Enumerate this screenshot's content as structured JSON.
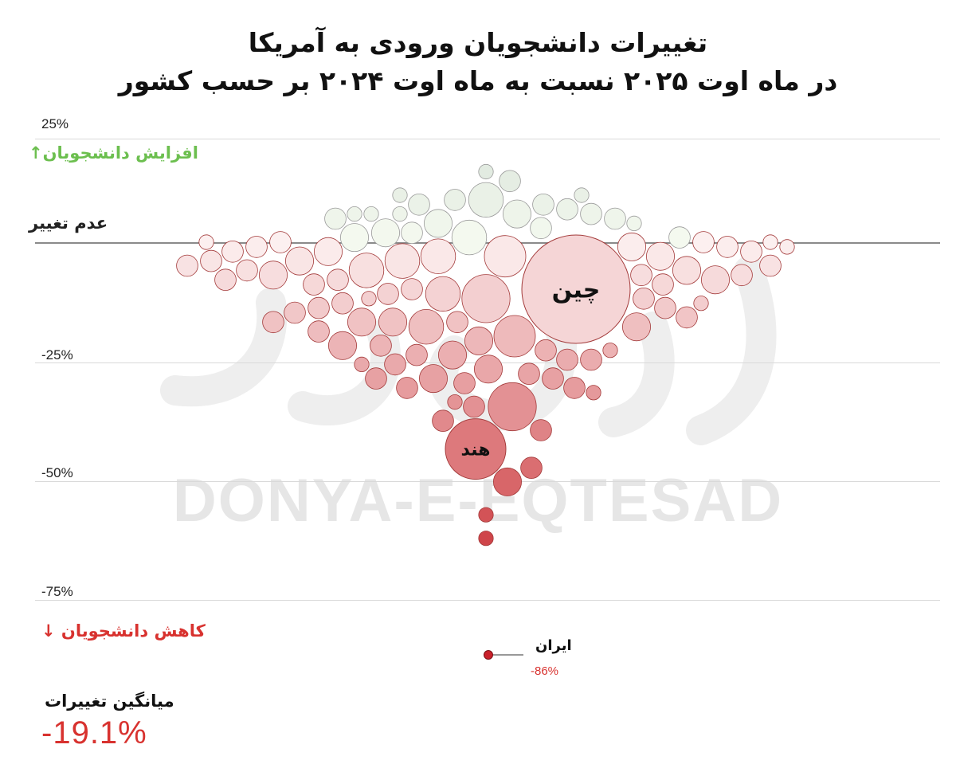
{
  "title": {
    "line1": "تغییرات دانشجویان ورودی به آمریکا",
    "line2": "در ماه اوت ۲۰۲۵ نسبت به ماه اوت ۲۰۲۴ بر حسب کشور"
  },
  "labels": {
    "increase": "افزایش دانشجویان",
    "increase_arrow": "↑",
    "no_change": "عدم تغییر",
    "decrease": "کاهش دانشجویان",
    "decrease_arrow": "↓",
    "average_label": "میانگین تغییرات",
    "average_value": "-19.1%"
  },
  "watermark": "DONYA-E-EQTESAD",
  "chart_data": {
    "type": "scatter",
    "y_axis": {
      "ticks": [
        "25%",
        "-25%",
        "-50%",
        "-75%"
      ],
      "ylim": [
        -75,
        25
      ]
    },
    "callouts": [
      {
        "name": "چین",
        "change": -10
      },
      {
        "name": "هند",
        "change": -44
      },
      {
        "name": "ایران",
        "change": -86,
        "value_label": "-86%"
      }
    ],
    "points": [
      {
        "change": 15,
        "size": 1
      },
      {
        "change": 13,
        "size": 2
      },
      {
        "change": 10,
        "size": 1
      },
      {
        "change": 9,
        "size": 4
      },
      {
        "change": 9,
        "size": 2
      },
      {
        "change": 10,
        "size": 1
      },
      {
        "change": 8,
        "size": 2
      },
      {
        "change": 8,
        "size": 2
      },
      {
        "change": 7,
        "size": 2
      },
      {
        "change": 6,
        "size": 3
      },
      {
        "change": 6,
        "size": 2
      },
      {
        "change": 6,
        "size": 1
      },
      {
        "change": 6,
        "size": 1
      },
      {
        "change": 6,
        "size": 1
      },
      {
        "change": 5,
        "size": 2
      },
      {
        "change": 5,
        "size": 2
      },
      {
        "change": 4,
        "size": 3
      },
      {
        "change": 4,
        "size": 1
      },
      {
        "change": 3,
        "size": 2
      },
      {
        "change": 2,
        "size": 3
      },
      {
        "change": 2,
        "size": 2
      },
      {
        "change": 1,
        "size": 3
      },
      {
        "change": 1,
        "size": 4
      },
      {
        "change": 1,
        "size": 2
      },
      {
        "change": 0,
        "size": 1
      },
      {
        "change": 0,
        "size": 2
      },
      {
        "change": 0,
        "size": 2
      },
      {
        "change": 0,
        "size": 1
      },
      {
        "change": -1,
        "size": 3
      },
      {
        "change": -1,
        "size": 2
      },
      {
        "change": -1,
        "size": 1
      },
      {
        "change": -1,
        "size": 2
      },
      {
        "change": -2,
        "size": 3
      },
      {
        "change": -2,
        "size": 2
      },
      {
        "change": -2,
        "size": 2
      },
      {
        "change": -3,
        "size": 5
      },
      {
        "change": -3,
        "size": 3
      },
      {
        "change": -3,
        "size": 4
      },
      {
        "change": -4,
        "size": 2
      },
      {
        "change": -4,
        "size": 4
      },
      {
        "change": -4,
        "size": 3
      },
      {
        "change": -5,
        "size": 2
      },
      {
        "change": -5,
        "size": 2
      },
      {
        "change": -6,
        "size": 4
      },
      {
        "change": -6,
        "size": 3
      },
      {
        "change": -6,
        "size": 2
      },
      {
        "change": -7,
        "size": 3
      },
      {
        "change": -7,
        "size": 2
      },
      {
        "change": -7,
        "size": 2
      },
      {
        "change": -8,
        "size": 2
      },
      {
        "change": -8,
        "size": 3
      },
      {
        "change": -8,
        "size": 2
      },
      {
        "change": -9,
        "size": 2
      },
      {
        "change": -9,
        "size": 2
      },
      {
        "change": -10,
        "size": 2
      },
      {
        "change": -11,
        "size": 4
      },
      {
        "change": -11,
        "size": 2
      },
      {
        "change": -12,
        "size": 2
      },
      {
        "change": -12,
        "size": 6
      },
      {
        "change": -12,
        "size": 1
      },
      {
        "change": -13,
        "size": 2
      },
      {
        "change": -13,
        "size": 1
      },
      {
        "change": -14,
        "size": 2
      },
      {
        "change": -14,
        "size": 2
      },
      {
        "change": -15,
        "size": 2
      },
      {
        "change": -16,
        "size": 2
      },
      {
        "change": -17,
        "size": 3
      },
      {
        "change": -17,
        "size": 3
      },
      {
        "change": -17,
        "size": 2
      },
      {
        "change": -17,
        "size": 2
      },
      {
        "change": -18,
        "size": 4
      },
      {
        "change": -18,
        "size": 3
      },
      {
        "change": -19,
        "size": 2
      },
      {
        "change": -20,
        "size": 5
      },
      {
        "change": -21,
        "size": 3
      },
      {
        "change": -22,
        "size": 2
      },
      {
        "change": -22,
        "size": 3
      },
      {
        "change": -23,
        "size": 2
      },
      {
        "change": -23,
        "size": 1
      },
      {
        "change": -24,
        "size": 2
      },
      {
        "change": -24,
        "size": 3
      },
      {
        "change": -25,
        "size": 2
      },
      {
        "change": -25,
        "size": 2
      },
      {
        "change": -26,
        "size": 2
      },
      {
        "change": -26,
        "size": 1
      },
      {
        "change": -27,
        "size": 3
      },
      {
        "change": -28,
        "size": 2
      },
      {
        "change": -29,
        "size": 3
      },
      {
        "change": -29,
        "size": 2
      },
      {
        "change": -29,
        "size": 2
      },
      {
        "change": -30,
        "size": 2
      },
      {
        "change": -31,
        "size": 2
      },
      {
        "change": -31,
        "size": 2
      },
      {
        "change": -32,
        "size": 1
      },
      {
        "change": -34,
        "size": 1
      },
      {
        "change": -35,
        "size": 2
      },
      {
        "change": -35,
        "size": 6
      },
      {
        "change": -38,
        "size": 2
      },
      {
        "change": -40,
        "size": 2
      },
      {
        "change": -48,
        "size": 2
      },
      {
        "change": -51,
        "size": 3
      },
      {
        "change": -58,
        "size": 1
      },
      {
        "change": -63,
        "size": 1
      }
    ]
  }
}
